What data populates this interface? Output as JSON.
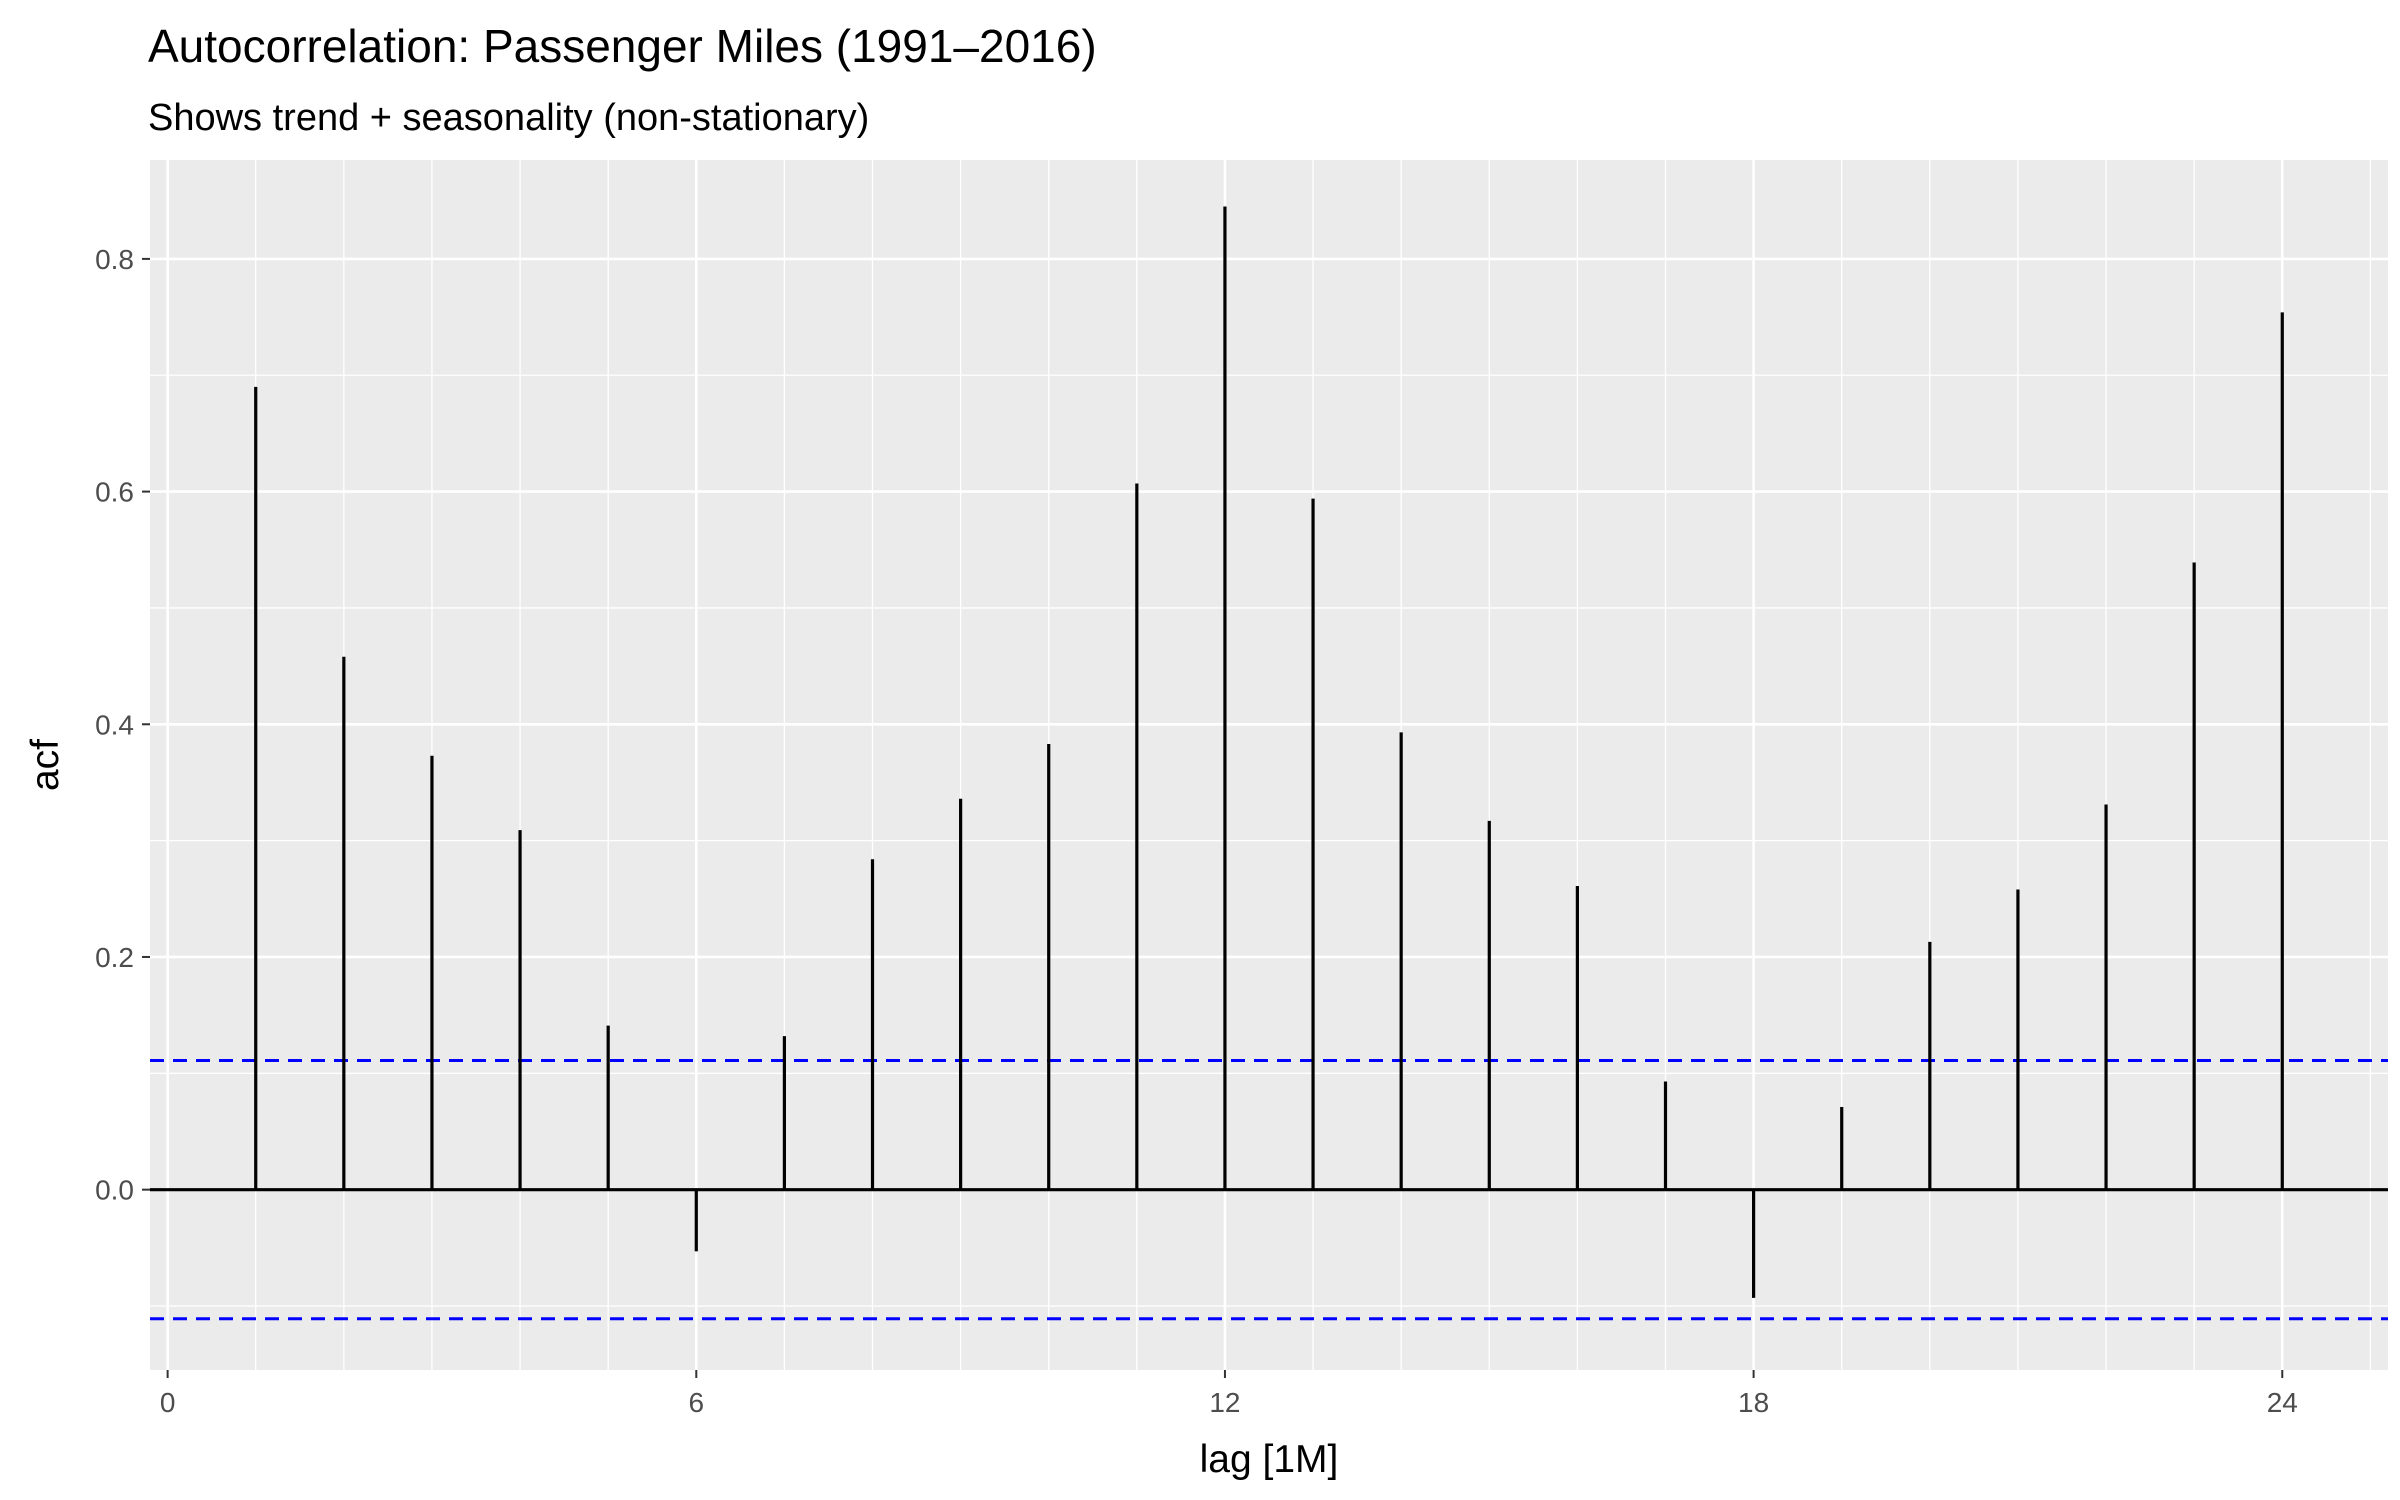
{
  "chart_data": {
    "type": "bar",
    "title": "Autocorrelation: Passenger Miles (1991–2016)",
    "subtitle": "Shows trend + seasonality (non-stationary)",
    "xlabel": "lag [1M]",
    "ylabel": "acf",
    "x": [
      1,
      2,
      3,
      4,
      5,
      6,
      7,
      8,
      9,
      10,
      11,
      12,
      13,
      14,
      15,
      16,
      17,
      18,
      19,
      20,
      21,
      22,
      23,
      24
    ],
    "values": [
      0.69,
      0.458,
      0.373,
      0.309,
      0.141,
      -0.053,
      0.132,
      0.284,
      0.336,
      0.383,
      0.607,
      0.845,
      0.594,
      0.393,
      0.317,
      0.261,
      0.093,
      -0.093,
      0.071,
      0.213,
      0.258,
      0.331,
      0.539,
      0.754
    ],
    "confidence_bounds": [
      0.111,
      -0.111
    ],
    "xlim": [
      -0.2,
      25.2
    ],
    "ylim": [
      -0.155,
      0.885
    ],
    "x_ticks": [
      0,
      6,
      12,
      18,
      24
    ],
    "x_tick_labels": [
      "0",
      "6",
      "12",
      "18",
      "24"
    ],
    "y_ticks": [
      0.0,
      0.2,
      0.4,
      0.6,
      0.8
    ],
    "y_tick_labels": [
      "0.0",
      "0.2",
      "0.4",
      "0.6",
      "0.8"
    ],
    "grid": true,
    "legend": "none",
    "colors": {
      "panel_background": "#ebebeb",
      "grid": "#ffffff",
      "spike": "#000000",
      "zero_line": "#000000",
      "confidence_line": "#0000ff",
      "tick_text": "#4d4d4d",
      "tick_mark": "#333333"
    }
  }
}
